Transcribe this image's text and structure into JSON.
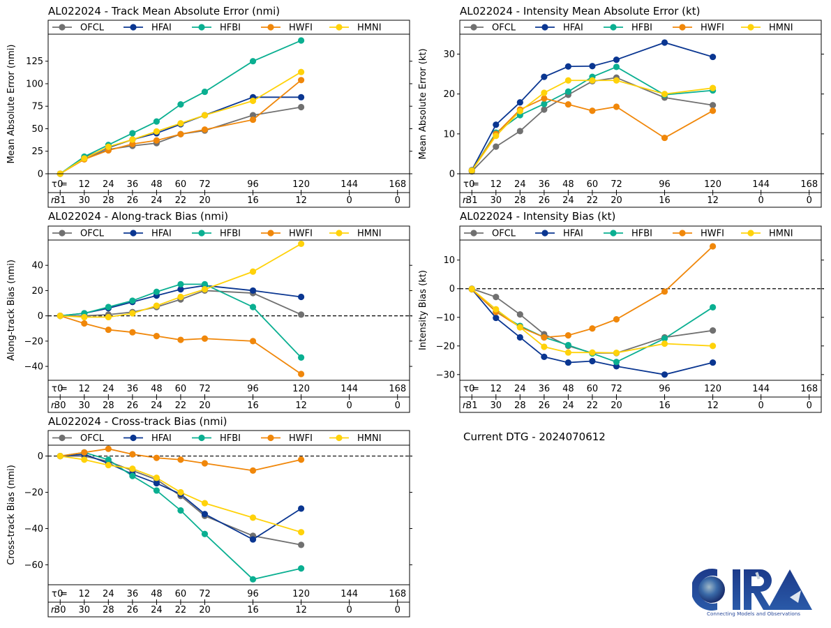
{
  "footer": {
    "dtg_text": "Current DTG - 2024070612",
    "logo_text": "CIRA",
    "logo_tagline": "Connecting Models and Observations"
  },
  "legend_colors": {
    "OFCL": "#707070",
    "HFAI": "#0a3691",
    "HFBI": "#0aaf91",
    "HWFI": "#f0870a",
    "HMNI": "#ffd20a"
  },
  "chart_data": [
    {
      "id": "track-mae",
      "type": "line",
      "title": "AL022024 - Track Mean Absolute Error (nmi)",
      "xlabel": "",
      "ylabel": "Mean Absolute Error (nmi)",
      "tau_label": "τ = ",
      "n_label": "n",
      "x": [
        0,
        12,
        24,
        36,
        48,
        60,
        72,
        96,
        120
      ],
      "tau_ticks": [
        0,
        12,
        24,
        36,
        48,
        60,
        72,
        96,
        120,
        144,
        168
      ],
      "n_counts": [
        31,
        30,
        28,
        26,
        24,
        22,
        20,
        16,
        12,
        0,
        0
      ],
      "yticks": [
        0,
        25,
        50,
        75,
        100,
        125
      ],
      "ylim": [
        0,
        155
      ],
      "zero_line": false,
      "legend": "top",
      "series": [
        {
          "name": "OFCL",
          "values": [
            0,
            17,
            27,
            31,
            34,
            44,
            48,
            65,
            74
          ]
        },
        {
          "name": "HFAI",
          "values": [
            0,
            18,
            29,
            38,
            45,
            55,
            65,
            85,
            85
          ]
        },
        {
          "name": "HFBI",
          "values": [
            0,
            19,
            32,
            45,
            58,
            77,
            91,
            125,
            148
          ]
        },
        {
          "name": "HWFI",
          "values": [
            0,
            16,
            26,
            33,
            37,
            44,
            49,
            60,
            104
          ]
        },
        {
          "name": "HMNI",
          "values": [
            0,
            17,
            30,
            38,
            47,
            56,
            65,
            81,
            113
          ]
        }
      ]
    },
    {
      "id": "intensity-mae",
      "type": "line",
      "title": "AL022024 - Intensity Mean Absolute Error (kt)",
      "xlabel": "",
      "ylabel": "Mean Absolute Error (kt)",
      "tau_label": "τ = ",
      "n_label": "n",
      "x": [
        0,
        12,
        24,
        36,
        48,
        60,
        72,
        96,
        120
      ],
      "tau_ticks": [
        0,
        12,
        24,
        36,
        48,
        60,
        72,
        96,
        120,
        144,
        168
      ],
      "n_counts": [
        31,
        30,
        28,
        26,
        24,
        22,
        20,
        16,
        12,
        0,
        0
      ],
      "yticks": [
        0,
        10,
        20,
        30
      ],
      "ylim": [
        0,
        35
      ],
      "zero_line": false,
      "legend": "top",
      "series": [
        {
          "name": "OFCL",
          "values": [
            0.6,
            6.8,
            10.7,
            16.1,
            19.8,
            23.2,
            24.1,
            19.1,
            17.2
          ]
        },
        {
          "name": "HFAI",
          "values": [
            0.9,
            12.3,
            17.9,
            24.3,
            26.9,
            27.0,
            28.6,
            32.9,
            29.3
          ]
        },
        {
          "name": "HFBI",
          "values": [
            0.8,
            10.3,
            14.7,
            17.5,
            20.6,
            24.3,
            26.8,
            19.8,
            20.9
          ]
        },
        {
          "name": "HWFI",
          "values": [
            0.8,
            10.0,
            16.1,
            18.9,
            17.4,
            15.8,
            16.8,
            9.0,
            15.8
          ]
        },
        {
          "name": "HMNI",
          "values": [
            0.8,
            9.5,
            15.7,
            20.3,
            23.4,
            23.4,
            23.4,
            20.0,
            21.5
          ]
        }
      ]
    },
    {
      "id": "along-track-bias",
      "type": "line",
      "title": "AL022024 - Along-track Bias (nmi)",
      "xlabel": "",
      "ylabel": "Along-track Bias (nmi)",
      "tau_label": "τ = ",
      "n_label": "n",
      "x": [
        0,
        12,
        24,
        36,
        48,
        60,
        72,
        96,
        120
      ],
      "tau_ticks": [
        0,
        12,
        24,
        36,
        48,
        60,
        72,
        96,
        120,
        144,
        168
      ],
      "n_counts": [
        30,
        30,
        28,
        26,
        24,
        22,
        20,
        16,
        12,
        0,
        0
      ],
      "yticks": [
        -40,
        -20,
        0,
        20,
        40
      ],
      "ylim": [
        -51,
        60
      ],
      "zero_line": true,
      "legend": "top",
      "series": [
        {
          "name": "OFCL",
          "values": [
            0,
            0,
            1,
            3,
            7,
            13,
            20,
            18,
            1
          ]
        },
        {
          "name": "HFAI",
          "values": [
            0,
            2,
            6,
            11,
            16,
            21,
            24,
            20,
            15
          ]
        },
        {
          "name": "HFBI",
          "values": [
            0,
            2,
            7,
            12,
            19,
            25,
            25,
            7,
            -33
          ]
        },
        {
          "name": "HWFI",
          "values": [
            0,
            -6,
            -11,
            -13,
            -16,
            -19,
            -18,
            -20,
            -46
          ]
        },
        {
          "name": "HMNI",
          "values": [
            0,
            -1,
            -1,
            2,
            8,
            15,
            21,
            35,
            57
          ]
        }
      ]
    },
    {
      "id": "intensity-bias",
      "type": "line",
      "title": "AL022024 - Intensity Bias (kt)",
      "xlabel": "",
      "ylabel": "Intensity Bias (kt)",
      "tau_label": "τ = ",
      "n_label": "n",
      "x": [
        0,
        12,
        24,
        36,
        48,
        60,
        72,
        96,
        120
      ],
      "tau_ticks": [
        0,
        12,
        24,
        36,
        48,
        60,
        72,
        96,
        120,
        144,
        168
      ],
      "n_counts": [
        31,
        30,
        28,
        26,
        24,
        22,
        20,
        16,
        12,
        0,
        0
      ],
      "yticks": [
        -30,
        -20,
        -10,
        0,
        10
      ],
      "ylim": [
        -32,
        17
      ],
      "zero_line": true,
      "legend": "top",
      "series": [
        {
          "name": "OFCL",
          "values": [
            0,
            -2.9,
            -9.0,
            -15.9,
            -20.0,
            -22.5,
            -22.5,
            -17.0,
            -14.6
          ]
        },
        {
          "name": "HFAI",
          "values": [
            -0.2,
            -10.2,
            -17.0,
            -23.8,
            -25.8,
            -25.3,
            -27.1,
            -30.0,
            -25.8
          ]
        },
        {
          "name": "HFBI",
          "values": [
            -0.2,
            -8.0,
            -13.0,
            -17.0,
            -19.7,
            -22.6,
            -25.6,
            -17.4,
            -6.5
          ]
        },
        {
          "name": "HWFI",
          "values": [
            -0.2,
            -8.1,
            -13.4,
            -17.0,
            -16.3,
            -13.9,
            -10.7,
            -1.0,
            14.8
          ]
        },
        {
          "name": "HMNI",
          "values": [
            -0.1,
            -7.2,
            -13.5,
            -20.3,
            -22.3,
            -22.3,
            -22.4,
            -19.2,
            -20.0
          ]
        }
      ]
    },
    {
      "id": "cross-track-bias",
      "type": "line",
      "title": "AL022024 - Cross-track Bias (nmi)",
      "xlabel": "",
      "ylabel": "Cross-track Bias (nmi)",
      "tau_label": "τ = ",
      "n_label": "n",
      "x": [
        0,
        12,
        24,
        36,
        48,
        60,
        72,
        96,
        120
      ],
      "tau_ticks": [
        0,
        12,
        24,
        36,
        48,
        60,
        72,
        96,
        120,
        144,
        168
      ],
      "n_counts": [
        30,
        30,
        28,
        26,
        24,
        22,
        20,
        16,
        12,
        0,
        0
      ],
      "yticks": [
        -60,
        -40,
        -20,
        0
      ],
      "ylim": [
        -71,
        6
      ],
      "zero_line": true,
      "legend": "top",
      "series": [
        {
          "name": "OFCL",
          "values": [
            0,
            0,
            -3,
            -8,
            -13,
            -22,
            -33,
            -44,
            -49
          ]
        },
        {
          "name": "HFAI",
          "values": [
            0,
            1,
            -4,
            -10,
            -15,
            -21,
            -32,
            -46,
            -29
          ]
        },
        {
          "name": "HFBI",
          "values": [
            0,
            2,
            -2,
            -11,
            -19,
            -30,
            -43,
            -68,
            -62
          ]
        },
        {
          "name": "HWFI",
          "values": [
            0,
            2,
            4,
            1,
            -1,
            -2,
            -4,
            -8,
            -2
          ]
        },
        {
          "name": "HMNI",
          "values": [
            0,
            -2,
            -5,
            -7,
            -12,
            -20,
            -26,
            -34,
            -42
          ]
        }
      ]
    }
  ]
}
